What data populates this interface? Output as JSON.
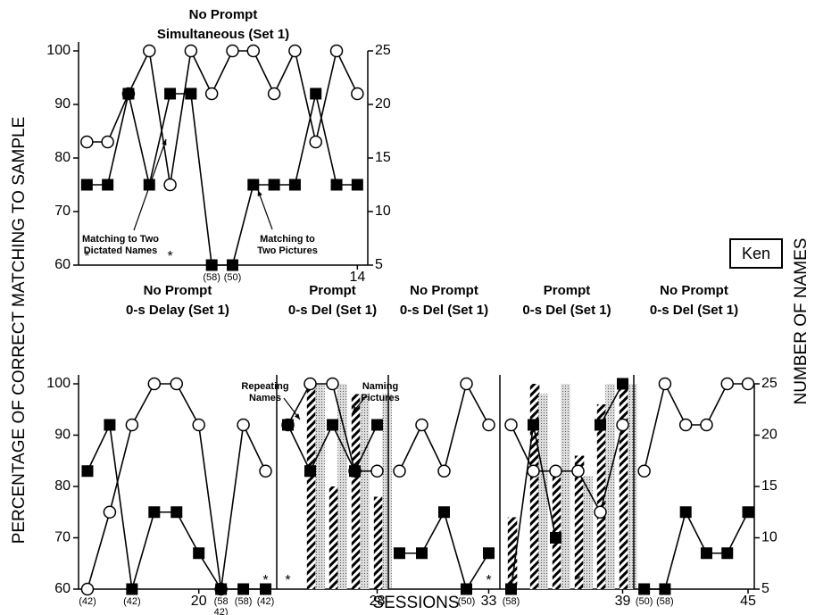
{
  "figure": {
    "ylabel": "PERCENTAGE OF CORRECT MATCHING TO SAMPLE",
    "y2label": "NUMBER OF NAMES",
    "xlabel": "SESSIONS",
    "tag": "Ken"
  },
  "chart_data": [
    {
      "type": "line",
      "title": [
        "No Prompt",
        "Simultaneous (Set 1)"
      ],
      "x": [
        1,
        2,
        3,
        4,
        5,
        6,
        7,
        8,
        9,
        10,
        11,
        12,
        13,
        14
      ],
      "xlim": [
        0.6,
        14.5
      ],
      "xticks": [
        14
      ],
      "ylim": [
        60,
        100
      ],
      "yticks": [
        60,
        70,
        80,
        90,
        100
      ],
      "y2lim": [
        5,
        25
      ],
      "y2ticks": [
        5,
        10,
        15,
        20,
        25
      ],
      "series": [
        {
          "kind": "line",
          "marker": "circle",
          "color": "#000000",
          "values": [
            83,
            83,
            92,
            100,
            75,
            100,
            92,
            100,
            100,
            92,
            100,
            83,
            100,
            92
          ]
        },
        {
          "kind": "line",
          "marker": "square",
          "color": "#000000",
          "values": [
            75,
            75,
            92,
            75,
            92,
            92,
            60,
            60,
            75,
            75,
            75,
            92,
            75,
            75
          ]
        }
      ],
      "notes": [
        {
          "x": 7,
          "label": [
            "(58)"
          ]
        },
        {
          "x": 8,
          "label": [
            "(50)"
          ]
        }
      ],
      "stars": [
        {
          "x": 1,
          "label": "*"
        },
        {
          "x": 5,
          "label": "*"
        }
      ],
      "annotations": [
        {
          "text": [
            "Matching to Two",
            "Dictated Names"
          ]
        },
        {
          "text": [
            "Matching to",
            "Two Pictures"
          ]
        }
      ]
    },
    {
      "type": "line",
      "title": [
        "No Prompt",
        "0-s Delay (Set 1)"
      ],
      "x": [
        15,
        16,
        17,
        18,
        19,
        20,
        21,
        22,
        23
      ],
      "xlim": [
        14.6,
        23.5
      ],
      "xticks": [
        20
      ],
      "ylim": [
        60,
        100
      ],
      "yticks": [
        60,
        70,
        80,
        90,
        100
      ],
      "series": [
        {
          "kind": "line",
          "marker": "circle",
          "color": "#000000",
          "values": [
            60,
            75,
            92,
            100,
            100,
            92,
            60,
            92,
            83
          ]
        },
        {
          "kind": "line",
          "marker": "square",
          "color": "#000000",
          "values": [
            83,
            92,
            60,
            75,
            75,
            67,
            60,
            60,
            60
          ]
        }
      ],
      "notes": [
        {
          "x": 15,
          "label": [
            "(42)"
          ]
        },
        {
          "x": 17,
          "label": [
            "(42)"
          ]
        },
        {
          "x": 21,
          "label": [
            "(58",
            "42)"
          ]
        },
        {
          "x": 22,
          "label": [
            "(58)"
          ]
        },
        {
          "x": 23,
          "label": [
            "(42)"
          ]
        }
      ],
      "stars": [
        {
          "x": 23,
          "label": "*"
        }
      ]
    },
    {
      "type": "combo",
      "title": [
        "Prompt",
        "0-s Del (Set 1)"
      ],
      "x": [
        24,
        25,
        26,
        27,
        28
      ],
      "xlim": [
        23.5,
        28.5
      ],
      "xticks": [
        28
      ],
      "ylim": [
        60,
        100
      ],
      "y2lim": [
        5,
        25
      ],
      "series": [
        {
          "kind": "bar",
          "axis": "y2",
          "pattern": "hatch",
          "color": "#000000",
          "values": [
            null,
            25,
            15,
            24,
            14
          ]
        },
        {
          "kind": "bar",
          "axis": "y2",
          "pattern": "dots",
          "color": "#000000",
          "values": [
            null,
            25,
            25,
            24,
            24
          ]
        },
        {
          "kind": "line",
          "marker": "circle",
          "color": "#000000",
          "values": [
            92,
            100,
            100,
            83,
            83
          ]
        },
        {
          "kind": "line",
          "marker": "square",
          "color": "#000000",
          "values": [
            92,
            83,
            92,
            83,
            92
          ]
        }
      ],
      "stars": [
        {
          "x": 24,
          "label": "*"
        }
      ],
      "annotations": [
        {
          "text": [
            "Repeating",
            "Names"
          ]
        },
        {
          "text": [
            "Naming",
            "Pictures"
          ]
        }
      ]
    },
    {
      "type": "line",
      "title": [
        "No Prompt",
        "0-s Del (Set 1)"
      ],
      "x": [
        29,
        30,
        31,
        32,
        33
      ],
      "xlim": [
        28.5,
        33.5
      ],
      "xticks": [
        33
      ],
      "ylim": [
        60,
        100
      ],
      "series": [
        {
          "kind": "line",
          "marker": "circle",
          "color": "#000000",
          "values": [
            83,
            92,
            83,
            100,
            92
          ]
        },
        {
          "kind": "line",
          "marker": "square",
          "color": "#000000",
          "values": [
            67,
            67,
            75,
            60,
            67
          ]
        }
      ],
      "notes": [
        {
          "x": 32,
          "label": [
            "(50)"
          ]
        }
      ],
      "stars": [
        {
          "x": 33,
          "label": "*"
        }
      ]
    },
    {
      "type": "combo",
      "title": [
        "Prompt",
        "0-s Del (Set 1)"
      ],
      "x": [
        34,
        35,
        36,
        37,
        38,
        39
      ],
      "xlim": [
        33.5,
        39.5
      ],
      "xticks": [
        39
      ],
      "ylim": [
        60,
        100
      ],
      "y2lim": [
        5,
        25
      ],
      "series": [
        {
          "kind": "bar",
          "axis": "y2",
          "pattern": "hatch",
          "color": "#000000",
          "values": [
            12,
            25,
            17,
            18,
            23,
            25
          ]
        },
        {
          "kind": "bar",
          "axis": "y2",
          "pattern": "dots",
          "color": "#000000",
          "values": [
            null,
            24,
            25,
            16,
            25,
            25
          ]
        },
        {
          "kind": "line",
          "marker": "circle",
          "color": "#000000",
          "values": [
            92,
            83,
            83,
            83,
            75,
            92
          ]
        },
        {
          "kind": "line",
          "marker": "square",
          "color": "#000000",
          "values": [
            60,
            92,
            70,
            null,
            92,
            100
          ]
        }
      ],
      "notes": [
        {
          "x": 34,
          "label": [
            "(58)"
          ]
        }
      ],
      "stars": [
        {
          "x": 37,
          "label": "*"
        }
      ]
    },
    {
      "type": "line",
      "title": [
        "No Prompt",
        "0-s Del (Set 1)"
      ],
      "x": [
        40,
        41,
        42,
        43,
        44,
        45
      ],
      "xlim": [
        39.5,
        45.3
      ],
      "xticks": [
        45
      ],
      "ylim": [
        60,
        100
      ],
      "y2lim": [
        5,
        25
      ],
      "y2ticks": [
        5,
        10,
        15,
        20,
        25
      ],
      "series": [
        {
          "kind": "line",
          "marker": "circle",
          "color": "#000000",
          "values": [
            83,
            100,
            92,
            92,
            100,
            100
          ]
        },
        {
          "kind": "line",
          "marker": "square",
          "color": "#000000",
          "values": [
            60,
            60,
            75,
            67,
            67,
            75
          ]
        }
      ],
      "notes": [
        {
          "x": 40,
          "label": [
            "(50)"
          ]
        },
        {
          "x": 41,
          "label": [
            "(58)"
          ]
        }
      ]
    }
  ]
}
